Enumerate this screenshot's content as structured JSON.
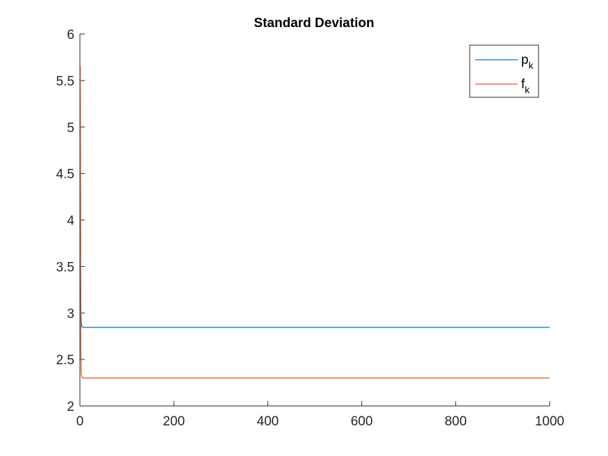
{
  "chart_data": {
    "type": "line",
    "title": "Standard Deviation",
    "xlabel": "",
    "ylabel": "",
    "xlim": [
      0,
      1000
    ],
    "ylim": [
      2,
      6
    ],
    "xticks": [
      0,
      200,
      400,
      600,
      800,
      1000
    ],
    "xtick_labels": [
      "0",
      "200",
      "400",
      "600",
      "800",
      "1000"
    ],
    "yticks": [
      2,
      2.5,
      3,
      3.5,
      4,
      4.5,
      5,
      5.5,
      6
    ],
    "ytick_labels": [
      "2",
      "2.5",
      "3",
      "3.5",
      "4",
      "4.5",
      "5",
      "5.5",
      "6"
    ],
    "grid": false,
    "legend_position": "top-right",
    "series": [
      {
        "name_base": "p",
        "name_sub": "k",
        "color": "#0072BD",
        "x": [
          1,
          2,
          3,
          4,
          5,
          6,
          8,
          10,
          20,
          50,
          100,
          200,
          400,
          600,
          800,
          1000
        ],
        "y": [
          3.6,
          3.05,
          2.9,
          2.86,
          2.85,
          2.845,
          2.845,
          2.845,
          2.845,
          2.845,
          2.845,
          2.845,
          2.845,
          2.845,
          2.845,
          2.845
        ]
      },
      {
        "name_base": "f",
        "name_sub": "k",
        "color": "#D95319",
        "x": [
          1,
          2,
          3,
          4,
          5,
          6,
          8,
          10,
          20,
          50,
          100,
          200,
          400,
          600,
          800,
          1000
        ],
        "y": [
          5.65,
          2.6,
          2.35,
          2.31,
          2.305,
          2.3,
          2.3,
          2.3,
          2.3,
          2.3,
          2.3,
          2.3,
          2.3,
          2.3,
          2.3,
          2.3
        ]
      }
    ]
  }
}
